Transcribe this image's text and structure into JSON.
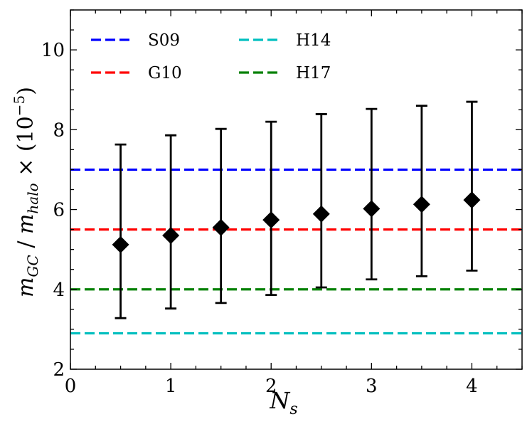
{
  "chart_data": {
    "type": "scatter",
    "xlabel": {
      "main": "N",
      "sub": "s"
    },
    "ylabel": {
      "m1": "m",
      "s1": "GC",
      "slash": " / ",
      "m2": "m",
      "s2": "halo",
      "times": " × (10",
      "exp": "−5",
      "close": ")"
    },
    "xlim": [
      0,
      4.5
    ],
    "ylim": [
      2,
      11
    ],
    "x_ticks": [
      0,
      1,
      2,
      3,
      4
    ],
    "y_ticks": [
      2,
      4,
      6,
      8,
      10
    ],
    "grid": false,
    "legend_position": "top",
    "points": [
      {
        "x": 0.5,
        "y": 5.12,
        "lo": 3.28,
        "hi": 7.63
      },
      {
        "x": 1.0,
        "y": 5.35,
        "lo": 3.52,
        "hi": 7.86
      },
      {
        "x": 1.5,
        "y": 5.55,
        "lo": 3.66,
        "hi": 8.02
      },
      {
        "x": 2.0,
        "y": 5.74,
        "lo": 3.86,
        "hi": 8.2
      },
      {
        "x": 2.5,
        "y": 5.89,
        "lo": 4.05,
        "hi": 8.39
      },
      {
        "x": 3.0,
        "y": 6.02,
        "lo": 4.25,
        "hi": 8.52
      },
      {
        "x": 3.5,
        "y": 6.13,
        "lo": 4.33,
        "hi": 8.6
      },
      {
        "x": 4.0,
        "y": 6.24,
        "lo": 4.47,
        "hi": 8.7
      }
    ],
    "hlines": [
      {
        "name": "S09",
        "y": 7.0,
        "color": "#0000ff"
      },
      {
        "name": "G10",
        "y": 5.5,
        "color": "#ff0000"
      },
      {
        "name": "H14",
        "y": 2.9,
        "color": "#00bfbf"
      },
      {
        "name": "H17",
        "y": 4.0,
        "color": "#008000"
      }
    ]
  }
}
